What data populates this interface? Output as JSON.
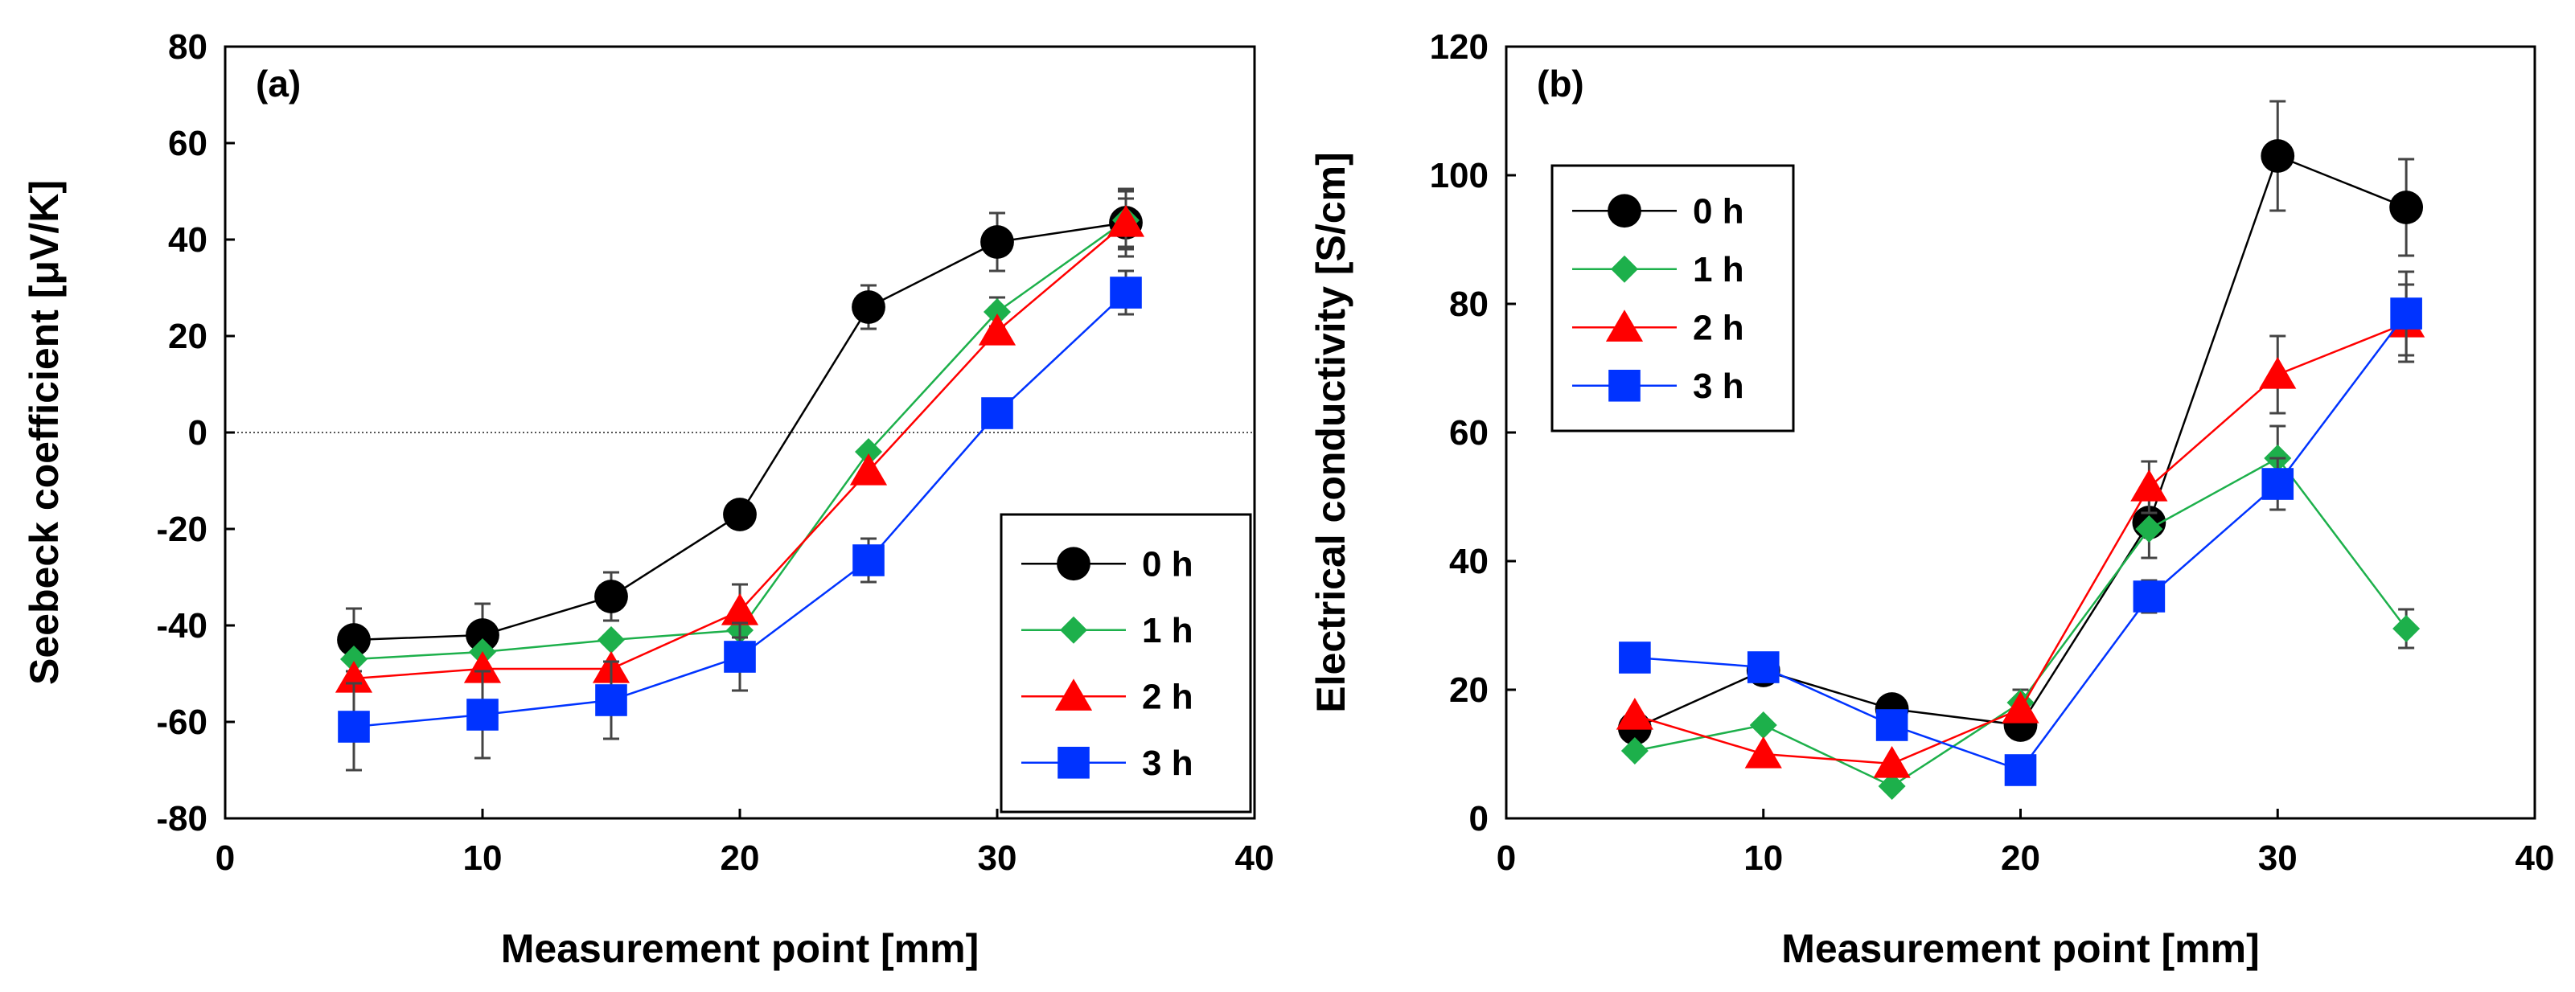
{
  "chart_data": [
    {
      "type": "line",
      "panel_label": "(a)",
      "xlabel": "Measurement point [mm]",
      "ylabel": "Seebeck coefficient [μV/K]",
      "xlim": [
        0,
        40
      ],
      "ylim": [
        -80,
        80
      ],
      "xticks": [
        0,
        10,
        20,
        30,
        40
      ],
      "yticks": [
        -80,
        -60,
        -40,
        -20,
        0,
        20,
        40,
        60,
        80
      ],
      "zero_line": true,
      "legend_position": "bottom-right",
      "x": [
        5,
        10,
        15,
        20,
        25,
        30,
        35
      ],
      "series": [
        {
          "name": "0 h",
          "marker": "circle",
          "color": "#000000",
          "line_color": "#000000",
          "values": [
            -43,
            -42,
            -34,
            -17,
            26,
            39.5,
            43.5
          ],
          "errors": [
            6.5,
            6.5,
            5,
            0,
            4.5,
            6,
            7
          ]
        },
        {
          "name": "1 h",
          "marker": "diamond",
          "color": "#1db04b",
          "line_color": "#1db04b",
          "values": [
            -47,
            -45.5,
            -43,
            -41,
            -4,
            25,
            44
          ],
          "errors": [
            0,
            0,
            0,
            0,
            0,
            3,
            6
          ]
        },
        {
          "name": "2 h",
          "marker": "triangle",
          "color": "#ff0000",
          "line_color": "#ff0000",
          "values": [
            -51,
            -49,
            -49,
            -37,
            -8,
            21,
            43.5
          ],
          "errors": [
            0,
            0,
            0,
            5.5,
            0,
            0,
            5
          ]
        },
        {
          "name": "3 h",
          "marker": "square",
          "color": "#0033ff",
          "line_color": "#0033ff",
          "values": [
            -61,
            -58.5,
            -55.5,
            -46.5,
            -26.5,
            4,
            29
          ],
          "errors": [
            9,
            9,
            8,
            7,
            4.5,
            0,
            4.5
          ]
        }
      ]
    },
    {
      "type": "line",
      "panel_label": "(b)",
      "xlabel": "Measurement point [mm]",
      "ylabel": "Electrical conductivity [S/cm]",
      "xlim": [
        0,
        40
      ],
      "ylim": [
        0,
        120
      ],
      "xticks": [
        0,
        10,
        20,
        30,
        40
      ],
      "yticks": [
        0,
        20,
        40,
        60,
        80,
        100,
        120
      ],
      "zero_line": false,
      "legend_position": "top-left",
      "x": [
        5,
        10,
        15,
        20,
        25,
        30,
        35
      ],
      "series": [
        {
          "name": "0 h",
          "marker": "circle",
          "color": "#000000",
          "line_color": "#000000",
          "values": [
            14,
            23,
            17,
            14.5,
            46,
            103,
            95
          ],
          "errors": [
            0,
            0,
            0,
            0,
            5.5,
            8.5,
            7.5
          ]
        },
        {
          "name": "1 h",
          "marker": "diamond",
          "color": "#1db04b",
          "line_color": "#1db04b",
          "values": [
            10.5,
            14.5,
            5,
            18,
            45,
            56,
            29.5
          ],
          "errors": [
            0,
            0,
            0,
            2,
            0,
            5,
            3
          ]
        },
        {
          "name": "2 h",
          "marker": "triangle",
          "color": "#ff0000",
          "line_color": "#ff0000",
          "values": [
            16,
            10,
            8.5,
            17,
            51.5,
            69,
            77
          ],
          "errors": [
            0,
            0,
            0,
            0,
            4,
            6,
            6
          ]
        },
        {
          "name": "3 h",
          "marker": "square",
          "color": "#0033ff",
          "line_color": "#0033ff",
          "values": [
            25,
            23.5,
            14.5,
            7.5,
            34.5,
            52,
            78.5
          ],
          "errors": [
            0,
            0,
            0,
            0,
            2.5,
            4,
            6.5
          ]
        }
      ]
    }
  ]
}
